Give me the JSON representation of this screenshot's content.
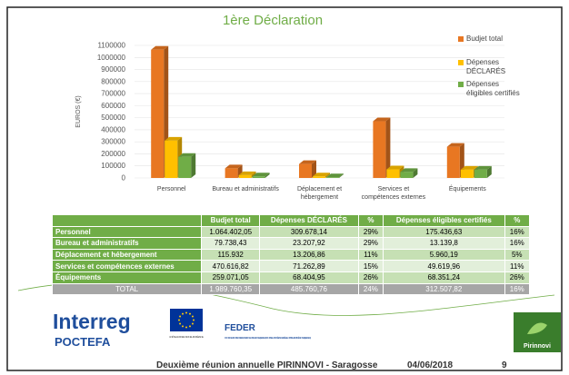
{
  "chart_data": {
    "type": "bar3d",
    "title": "1ère Déclaration",
    "ylabel": "EUROS (€)",
    "categories": [
      "Personnel",
      "Bureau et administratifs",
      "Déplacement et hébergement",
      "Services et compétences externes",
      "Équipements"
    ],
    "series": [
      {
        "name": "Budjet total",
        "color": "#e87722",
        "values": [
          1064402.05,
          79738.43,
          115932,
          470616.82,
          259071.05
        ]
      },
      {
        "name": "Dépenses DÉCLARÉS",
        "color": "#ffc000",
        "values": [
          309678.14,
          23207.92,
          13206.86,
          71262.89,
          68404.95
        ]
      },
      {
        "name": "Dépenses éligibles certifiés",
        "color": "#70ad47",
        "values": [
          175436.63,
          13139.8,
          5960.19,
          49619.96,
          68351.24
        ]
      }
    ],
    "ylim": [
      0,
      1100000
    ],
    "yticks": [
      0,
      100000,
      200000,
      300000,
      400000,
      500000,
      600000,
      700000,
      800000,
      900000,
      1000000,
      1100000
    ],
    "grid": true,
    "legend": "right"
  },
  "table": {
    "header": [
      "",
      "Budjet total",
      "Dépenses DÉCLARÉS",
      "%",
      "Dépenses éligibles certifiés",
      "%"
    ],
    "rows": [
      [
        "Personnel",
        "1.064.402,05",
        "309.678,14",
        "29%",
        "175.436,63",
        "16%"
      ],
      [
        "Bureau et administratifs",
        "79.738,43",
        "23.207,92",
        "29%",
        "13.139,8",
        "16%"
      ],
      [
        "Déplacement et hébergement",
        "115.932",
        "13.206,86",
        "11%",
        "5.960,19",
        "5%"
      ],
      [
        "Services et compétences externes",
        "470.616,82",
        "71.262,89",
        "15%",
        "49.619,96",
        "11%"
      ],
      [
        "Équipements",
        "259.071,05",
        "68.404,95",
        "26%",
        "68.351,24",
        "26%"
      ],
      [
        "TOTAL",
        "1.989.760,35",
        "485.760,76",
        "24%",
        "312.507,82",
        "16%"
      ]
    ]
  },
  "logos": {
    "interreg": "Interreg",
    "poctefa": "POCTEFA",
    "eu": "UNIÓN EUROPEA UNION EUROPÉENNE",
    "feder": "FEDER",
    "feder_text": "FONDO EUROPEO DE DESARROLLO REGIONAL (FEDER) FONDS EUROPÉEN DE DÉVELOPPEMENT RÉGIONAL (FEDER)",
    "pirinnovi": "Pirinnovi"
  },
  "footer": {
    "text": "Deuxième réunion annuelle PIRINNOVI - Saragosse",
    "date": "04/06/2018",
    "page": "9"
  }
}
